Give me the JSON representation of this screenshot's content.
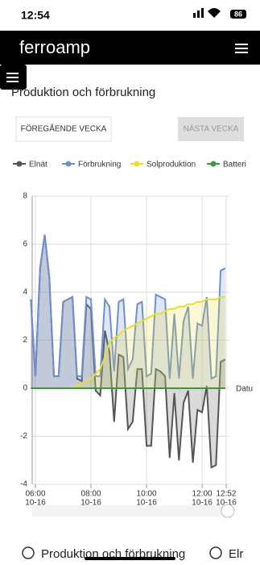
{
  "status_bar": {
    "time": "12:54",
    "battery": "86"
  },
  "header": {
    "logo": "ferroamp"
  },
  "page_title": "Produktion och förbrukning",
  "buttons": {
    "previous": "FÖREGÅENDE VECKA",
    "next": "NÄSTA VECKA"
  },
  "chart_data": {
    "type": "area",
    "x_label": "Datu",
    "x": [
      "10-16 05:50",
      "10-16 06:00",
      "10-16 06:10",
      "10-16 06:20",
      "10-16 06:30",
      "10-16 06:40",
      "10-16 06:50",
      "10-16 07:00",
      "10-16 07:10",
      "10-16 07:20",
      "10-16 07:30",
      "10-16 07:40",
      "10-16 07:50",
      "10-16 08:00",
      "10-16 08:10",
      "10-16 08:20",
      "10-16 08:30",
      "10-16 08:40",
      "10-16 08:50",
      "10-16 09:00",
      "10-16 09:10",
      "10-16 09:20",
      "10-16 09:30",
      "10-16 09:40",
      "10-16 09:50",
      "10-16 10:00",
      "10-16 10:10",
      "10-16 10:20",
      "10-16 10:30",
      "10-16 10:40",
      "10-16 10:50",
      "10-16 11:00",
      "10-16 11:10",
      "10-16 11:20",
      "10-16 11:30",
      "10-16 11:40",
      "10-16 11:50",
      "10-16 12:00",
      "10-16 12:10",
      "10-16 12:20",
      "10-16 12:30",
      "10-16 12:40",
      "10-16 12:50"
    ],
    "series": [
      {
        "name": "Elnät",
        "color": "#555555",
        "values": [
          3.7,
          0.5,
          5.0,
          6.4,
          4.6,
          0.5,
          0.5,
          3.6,
          3.7,
          3.8,
          0.4,
          0.3,
          3.5,
          3.3,
          -0.1,
          -0.3,
          2.4,
          1.5,
          -1.4,
          1.4,
          1.3,
          -1.7,
          -1.4,
          0.8,
          0.8,
          -2.4,
          -2.4,
          0.8,
          0.7,
          0.5,
          -2.9,
          -0.2,
          -3.0,
          -0.6,
          -0.1,
          -3.1,
          -0.9,
          -1.0,
          0.1,
          -3.3,
          -3.2,
          1.1,
          1.2
        ]
      },
      {
        "name": "Förbrukning",
        "color": "#6f8fd0",
        "values": [
          3.7,
          0.5,
          5.0,
          6.4,
          4.6,
          0.5,
          0.5,
          3.6,
          3.7,
          3.8,
          0.5,
          0.5,
          3.8,
          3.7,
          0.5,
          0.5,
          3.7,
          3.4,
          0.7,
          3.6,
          3.7,
          0.8,
          1.2,
          3.5,
          3.6,
          0.5,
          0.6,
          3.9,
          3.8,
          3.7,
          0.4,
          3.1,
          0.4,
          2.8,
          3.4,
          0.4,
          2.7,
          2.6,
          3.8,
          0.4,
          0.5,
          4.9,
          5.0
        ]
      },
      {
        "name": "Solproduktion",
        "color": "#e8e030",
        "values": [
          0,
          0,
          0,
          0,
          0,
          0,
          0,
          0,
          0,
          0,
          0.1,
          0.2,
          0.3,
          0.4,
          0.6,
          0.8,
          1.3,
          1.9,
          2.1,
          2.2,
          2.4,
          2.5,
          2.6,
          2.7,
          2.8,
          2.9,
          3.0,
          3.1,
          3.1,
          3.2,
          3.3,
          3.3,
          3.4,
          3.4,
          3.5,
          3.5,
          3.6,
          3.6,
          3.7,
          3.7,
          3.7,
          3.8,
          3.8
        ]
      },
      {
        "name": "Batteri",
        "color": "#3a9a3a",
        "values": [
          0,
          0,
          0,
          0,
          0,
          0,
          0,
          0,
          0,
          0,
          0,
          0,
          0,
          0,
          0,
          0,
          0,
          0,
          0,
          0,
          0,
          0,
          0,
          0,
          0,
          0,
          0,
          0,
          0,
          0,
          0,
          0,
          0,
          0,
          0,
          0,
          0,
          0,
          0,
          0,
          0,
          0,
          0
        ]
      }
    ],
    "xlim": [
      "10-16 05:53",
      "10-16 12:59"
    ],
    "xticks": [
      {
        "value": "10-16 06:00",
        "label": [
          "06:00",
          "10-16"
        ]
      },
      {
        "value": "10-16 08:00",
        "label": [
          "08:00",
          "10-16"
        ]
      },
      {
        "value": "10-16 10:00",
        "label": [
          "10:00",
          "10-16"
        ]
      },
      {
        "value": "10-16 12:00",
        "label": [
          "12:00",
          "10-16"
        ]
      },
      {
        "value": "10-16 12:52",
        "label": [
          "12:52",
          "10-16"
        ]
      }
    ],
    "ylim": [
      -4,
      8
    ],
    "yticks": [
      -4,
      -2,
      0,
      2,
      4,
      6,
      8
    ],
    "grid": true
  },
  "radio_options": [
    "Produktion och förbrukning",
    "Elr"
  ]
}
